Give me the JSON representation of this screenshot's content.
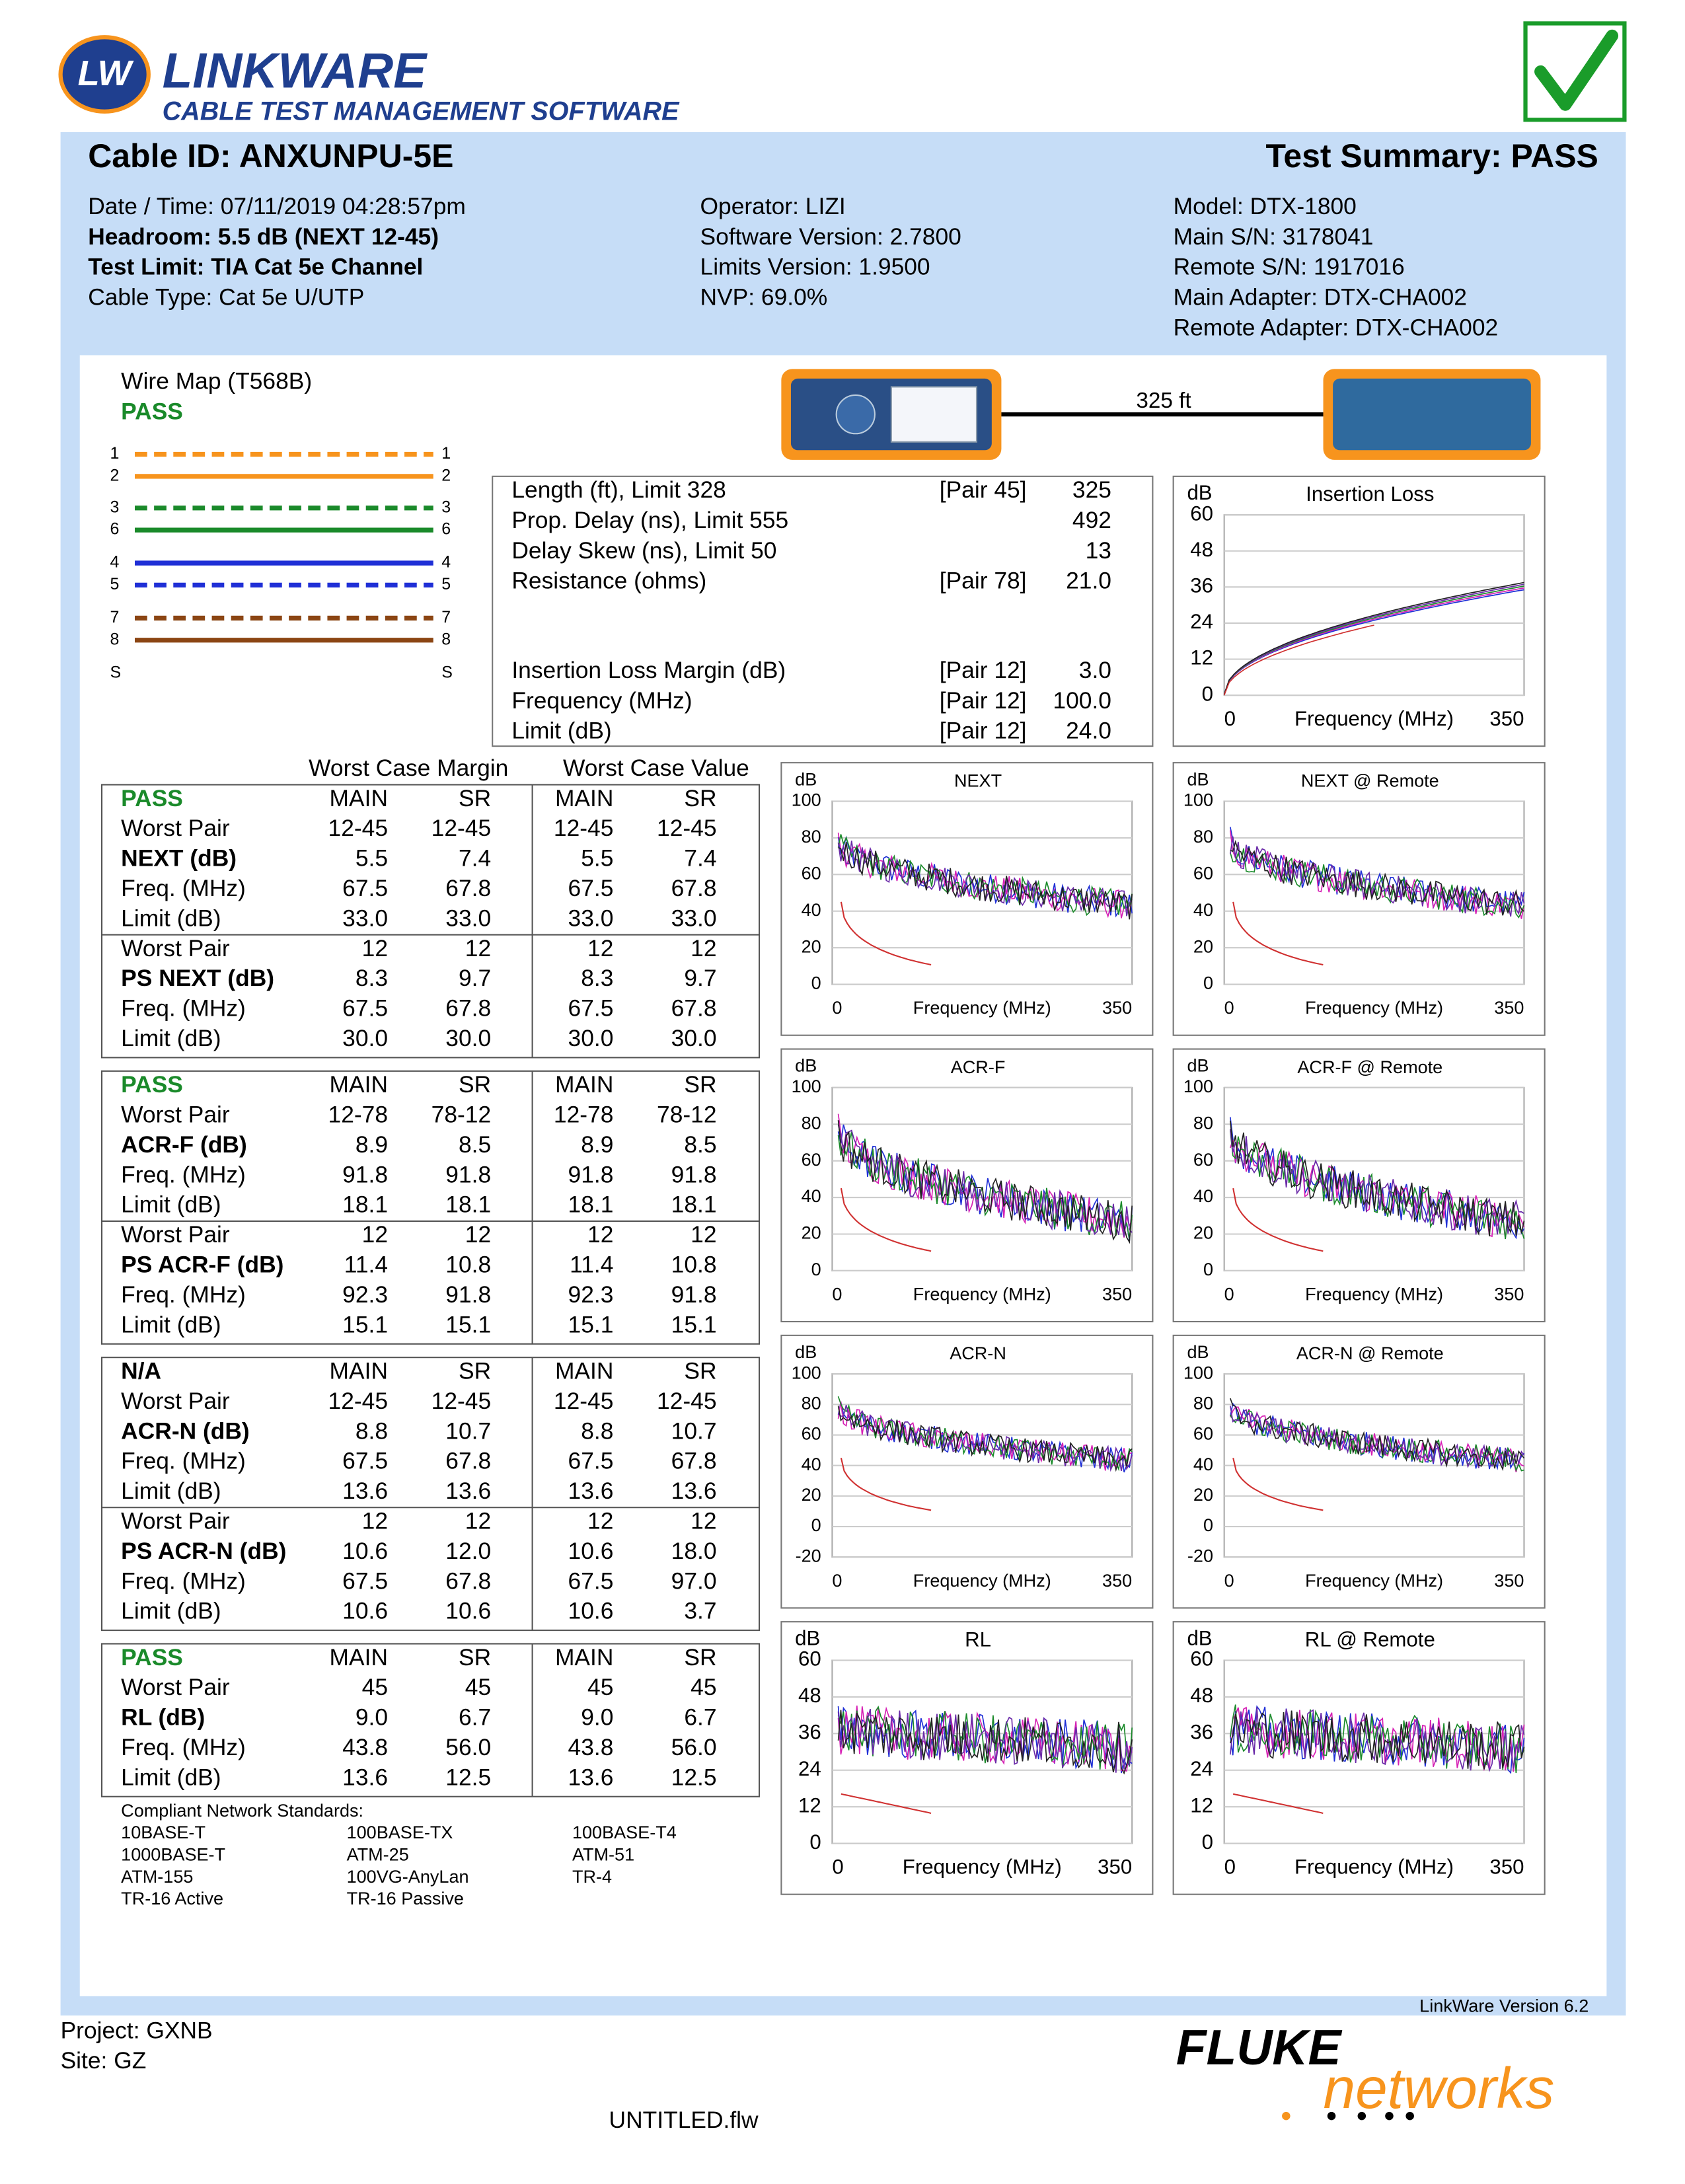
{
  "header": {
    "logo_mark": "LW",
    "logo_title": "LINKWARE",
    "logo_subtitle": "CABLE TEST MANAGEMENT SOFTWARE"
  },
  "summary": {
    "cable_id": "Cable ID: ANXUNPU-5E",
    "test_summary": "Test Summary: PASS",
    "columns": [
      [
        {
          "text": "Date / Time: 07/11/2019 04:28:57pm",
          "bold": false
        },
        {
          "text": "Headroom: 5.5 dB (NEXT 12-45)",
          "bold": true
        },
        {
          "text": "Test Limit: TIA Cat 5e Channel",
          "bold": true
        },
        {
          "text": "Cable Type: Cat 5e U/UTP",
          "bold": false
        }
      ],
      [
        {
          "text": "Operator: LIZI",
          "bold": false
        },
        {
          "text": "Software Version: 2.7800",
          "bold": false
        },
        {
          "text": "Limits Version: 1.9500",
          "bold": false
        },
        {
          "text": "NVP: 69.0%",
          "bold": false
        }
      ],
      [
        {
          "text": "Model: DTX-1800",
          "bold": false
        },
        {
          "text": "Main S/N: 3178041",
          "bold": false
        },
        {
          "text": "Remote S/N: 1917016",
          "bold": false
        },
        {
          "text": "Main Adapter: DTX-CHA002",
          "bold": false
        },
        {
          "text": "Remote Adapter: DTX-CHA002",
          "bold": false
        }
      ]
    ]
  },
  "wire_map": {
    "title": "Wire Map (T568B)",
    "status": "PASS",
    "wires": [
      {
        "left": "1",
        "right": "1",
        "color": "#f7941d",
        "dashed": true
      },
      {
        "left": "2",
        "right": "2",
        "color": "#f7941d",
        "dashed": false
      },
      {
        "left": "3",
        "right": "3",
        "color": "#1a8a2a",
        "dashed": true
      },
      {
        "left": "6",
        "right": "6",
        "color": "#1a8a2a",
        "dashed": false
      },
      {
        "left": "4",
        "right": "4",
        "color": "#1f2fd6",
        "dashed": false
      },
      {
        "left": "5",
        "right": "5",
        "color": "#1f2fd6",
        "dashed": true
      },
      {
        "left": "7",
        "right": "7",
        "color": "#8b4513",
        "dashed": true
      },
      {
        "left": "8",
        "right": "8",
        "color": "#8b4513",
        "dashed": false
      }
    ],
    "shield": {
      "left": "S",
      "right": "S"
    }
  },
  "link": {
    "length": "325 ft"
  },
  "measurements": [
    [
      {
        "label": "Length (ft), Limit 328",
        "pair": "[Pair 45]",
        "value": "325"
      },
      {
        "label": "Prop. Delay (ns), Limit 555",
        "value": "492"
      },
      {
        "label": "Delay Skew (ns), Limit 50",
        "value": "13"
      },
      {
        "label": "Resistance (ohms)",
        "pair": "[Pair 78]",
        "value": "21.0"
      }
    ],
    [
      {
        "label": "Insertion Loss Margin (dB)",
        "pair": "[Pair 12]",
        "value": "3.0"
      },
      {
        "label": "Frequency (MHz)",
        "pair": "[Pair 12]",
        "value": "100.0"
      },
      {
        "label": "Limit (dB)",
        "pair": "[Pair 12]",
        "value": "24.0"
      }
    ]
  ],
  "tables": {
    "header_margin": "Worst Case Margin",
    "header_value": "Worst Case Value",
    "blocks": [
      {
        "status_color": "#1a8a2a",
        "rows": [
          [
            "PASS",
            "MAIN",
            "SR",
            "MAIN",
            "SR"
          ],
          [
            "Worst Pair",
            "12-45",
            "12-45",
            "12-45",
            "12-45"
          ],
          [
            "NEXT (dB)",
            "5.5",
            "7.4",
            "5.5",
            "7.4"
          ],
          [
            "Freq. (MHz)",
            "67.5",
            "67.8",
            "67.5",
            "67.8"
          ],
          [
            "Limit (dB)",
            "33.0",
            "33.0",
            "33.0",
            "33.0"
          ],
          [
            "Worst Pair",
            "12",
            "12",
            "12",
            "12"
          ],
          [
            "PS NEXT (dB)",
            "8.3",
            "9.7",
            "8.3",
            "9.7"
          ],
          [
            "Freq. (MHz)",
            "67.5",
            "67.8",
            "67.5",
            "67.8"
          ],
          [
            "Limit (dB)",
            "30.0",
            "30.0",
            "30.0",
            "30.0"
          ]
        ]
      },
      {
        "status_color": "#1a8a2a",
        "rows": [
          [
            "PASS",
            "MAIN",
            "SR",
            "MAIN",
            "SR"
          ],
          [
            "Worst Pair",
            "12-78",
            "78-12",
            "12-78",
            "78-12"
          ],
          [
            "ACR-F (dB)",
            "8.9",
            "8.5",
            "8.9",
            "8.5"
          ],
          [
            "Freq. (MHz)",
            "91.8",
            "91.8",
            "91.8",
            "91.8"
          ],
          [
            "Limit (dB)",
            "18.1",
            "18.1",
            "18.1",
            "18.1"
          ],
          [
            "Worst Pair",
            "12",
            "12",
            "12",
            "12"
          ],
          [
            "PS ACR-F (dB)",
            "11.4",
            "10.8",
            "11.4",
            "10.8"
          ],
          [
            "Freq. (MHz)",
            "92.3",
            "91.8",
            "92.3",
            "91.8"
          ],
          [
            "Limit (dB)",
            "15.1",
            "15.1",
            "15.1",
            "15.1"
          ]
        ]
      },
      {
        "status_color": "#000000",
        "rows": [
          [
            "N/A",
            "MAIN",
            "SR",
            "MAIN",
            "SR"
          ],
          [
            "Worst Pair",
            "12-45",
            "12-45",
            "12-45",
            "12-45"
          ],
          [
            "ACR-N (dB)",
            "8.8",
            "10.7",
            "8.8",
            "10.7"
          ],
          [
            "Freq. (MHz)",
            "67.5",
            "67.8",
            "67.5",
            "67.8"
          ],
          [
            "Limit (dB)",
            "13.6",
            "13.6",
            "13.6",
            "13.6"
          ],
          [
            "Worst Pair",
            "12",
            "12",
            "12",
            "12"
          ],
          [
            "PS ACR-N (dB)",
            "10.6",
            "12.0",
            "10.6",
            "18.0"
          ],
          [
            "Freq. (MHz)",
            "67.5",
            "67.8",
            "67.5",
            "97.0"
          ],
          [
            "Limit (dB)",
            "10.6",
            "10.6",
            "10.6",
            "3.7"
          ]
        ]
      },
      {
        "status_color": "#1a8a2a",
        "rows": [
          [
            "PASS",
            "MAIN",
            "SR",
            "MAIN",
            "SR"
          ],
          [
            "Worst Pair",
            "45",
            "45",
            "45",
            "45"
          ],
          [
            "RL (dB)",
            "9.0",
            "6.7",
            "9.0",
            "6.7"
          ],
          [
            "Freq. (MHz)",
            "43.8",
            "56.0",
            "43.8",
            "56.0"
          ],
          [
            "Limit (dB)",
            "13.6",
            "12.5",
            "13.6",
            "12.5"
          ]
        ]
      }
    ]
  },
  "charts": [
    {
      "title": "Insertion Loss",
      "unit": "dB",
      "ylim": [
        0,
        60
      ],
      "yticks": [
        60,
        48,
        36,
        24,
        12,
        0
      ],
      "xlim": [
        0,
        350
      ],
      "xticks": [
        0,
        350
      ],
      "xlabel": "Frequency (MHz)"
    },
    {
      "title": "NEXT",
      "unit": "dB",
      "ylim": [
        0,
        100
      ],
      "yticks": [
        100,
        80,
        60,
        40,
        20,
        0
      ],
      "xlim": [
        0,
        350
      ],
      "xticks": [
        0,
        350
      ],
      "xlabel": "Frequency (MHz)"
    },
    {
      "title": "NEXT @ Remote",
      "unit": "dB",
      "ylim": [
        0,
        100
      ],
      "yticks": [
        100,
        80,
        60,
        40,
        20,
        0
      ],
      "xlim": [
        0,
        350
      ],
      "xticks": [
        0,
        350
      ],
      "xlabel": "Frequency (MHz)"
    },
    {
      "title": "ACR-F",
      "unit": "dB",
      "ylim": [
        0,
        100
      ],
      "yticks": [
        100,
        80,
        60,
        40,
        20,
        0
      ],
      "xlim": [
        0,
        350
      ],
      "xticks": [
        0,
        350
      ],
      "xlabel": "Frequency (MHz)"
    },
    {
      "title": "ACR-F @ Remote",
      "unit": "dB",
      "ylim": [
        0,
        100
      ],
      "yticks": [
        100,
        80,
        60,
        40,
        20,
        0
      ],
      "xlim": [
        0,
        350
      ],
      "xticks": [
        0,
        350
      ],
      "xlabel": "Frequency (MHz)"
    },
    {
      "title": "ACR-N",
      "unit": "dB",
      "ylim": [
        -20,
        100
      ],
      "yticks": [
        100,
        80,
        60,
        40,
        20,
        0,
        -20
      ],
      "xlim": [
        0,
        350
      ],
      "xticks": [
        0,
        350
      ],
      "xlabel": "Frequency (MHz)"
    },
    {
      "title": "ACR-N @ Remote",
      "unit": "dB",
      "ylim": [
        -20,
        100
      ],
      "yticks": [
        100,
        80,
        60,
        40,
        20,
        0,
        -20
      ],
      "xlim": [
        0,
        350
      ],
      "xticks": [
        0,
        350
      ],
      "xlabel": "Frequency (MHz)"
    },
    {
      "title": "RL",
      "unit": "dB",
      "ylim": [
        0,
        60
      ],
      "yticks": [
        60,
        48,
        36,
        24,
        12,
        0
      ],
      "xlim": [
        0,
        350
      ],
      "xticks": [
        0,
        350
      ],
      "xlabel": "Frequency (MHz)"
    },
    {
      "title": "RL @ Remote",
      "unit": "dB",
      "ylim": [
        0,
        60
      ],
      "yticks": [
        60,
        48,
        36,
        24,
        12,
        0
      ],
      "xlim": [
        0,
        350
      ],
      "xticks": [
        0,
        350
      ],
      "xlabel": "Frequency (MHz)"
    }
  ],
  "standards": {
    "title": "Compliant Network Standards:",
    "items": [
      "10BASE-T",
      "100BASE-TX",
      "100BASE-T4",
      "1000BASE-T",
      "ATM-25",
      "ATM-51",
      "ATM-155",
      "100VG-AnyLan",
      "TR-4",
      "TR-16 Active",
      "TR-16 Passive"
    ]
  },
  "footer": {
    "version": "LinkWare Version  6.2",
    "project": "Project: GXNB",
    "site": "Site: GZ",
    "file": "UNTITLED.flw",
    "brand": "FLUKE",
    "brand_sub": "networks"
  }
}
